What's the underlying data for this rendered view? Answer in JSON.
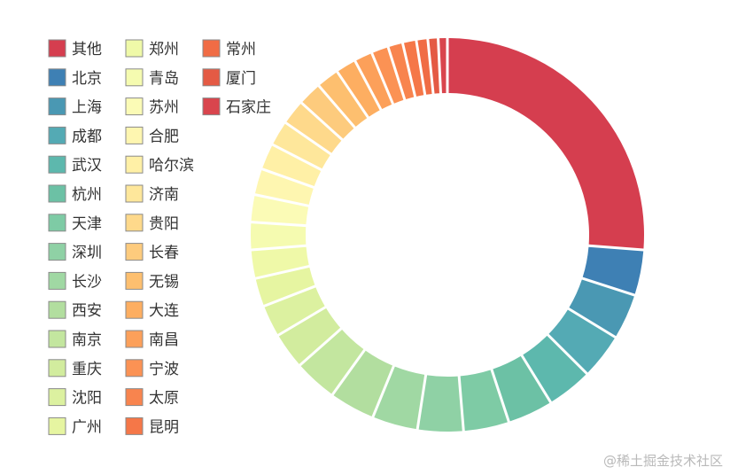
{
  "watermark": "@稀土掘金技术社区",
  "chart_data": {
    "type": "pie",
    "variant": "donut",
    "legend_position": "top-left",
    "categories": [
      "其他",
      "北京",
      "上海",
      "成都",
      "武汉",
      "杭州",
      "天津",
      "深圳",
      "长沙",
      "西安",
      "南京",
      "重庆",
      "沈阳",
      "广州",
      "郑州",
      "青岛",
      "苏州",
      "合肥",
      "哈尔滨",
      "济南",
      "贵阳",
      "长春",
      "无锡",
      "大连",
      "南昌",
      "宁波",
      "太原",
      "昆明",
      "常州",
      "厦门",
      "石家庄"
    ],
    "values": [
      28.0,
      4.0,
      4.0,
      4.0,
      4.0,
      4.0,
      4.0,
      4.0,
      4.0,
      4.0,
      3.8,
      3.2,
      2.8,
      2.5,
      2.5,
      2.4,
      2.4,
      2.3,
      2.3,
      2.2,
      2.2,
      2.1,
      2.0,
      1.8,
      1.6,
      1.5,
      1.3,
      1.2,
      1.0,
      0.9,
      0.8
    ],
    "colors": [
      "#d53e4f",
      "#3e80b4",
      "#4a98b3",
      "#54aab4",
      "#5db8ad",
      "#6cc1a5",
      "#7ecba5",
      "#8fd1a5",
      "#a0d8a3",
      "#b2de9f",
      "#c3e69f",
      "#d2ec9e",
      "#dcf1a0",
      "#e6f5a1",
      "#eff9a8",
      "#f5fbb0",
      "#fbfbb6",
      "#fef6b0",
      "#fff0a6",
      "#fee79b",
      "#fed98b",
      "#fdcb7d",
      "#fdbf6f",
      "#fdae61",
      "#fca05a",
      "#fb9254",
      "#f8844e",
      "#f57748",
      "#f06c45",
      "#e45a44",
      "#d9454d"
    ]
  }
}
